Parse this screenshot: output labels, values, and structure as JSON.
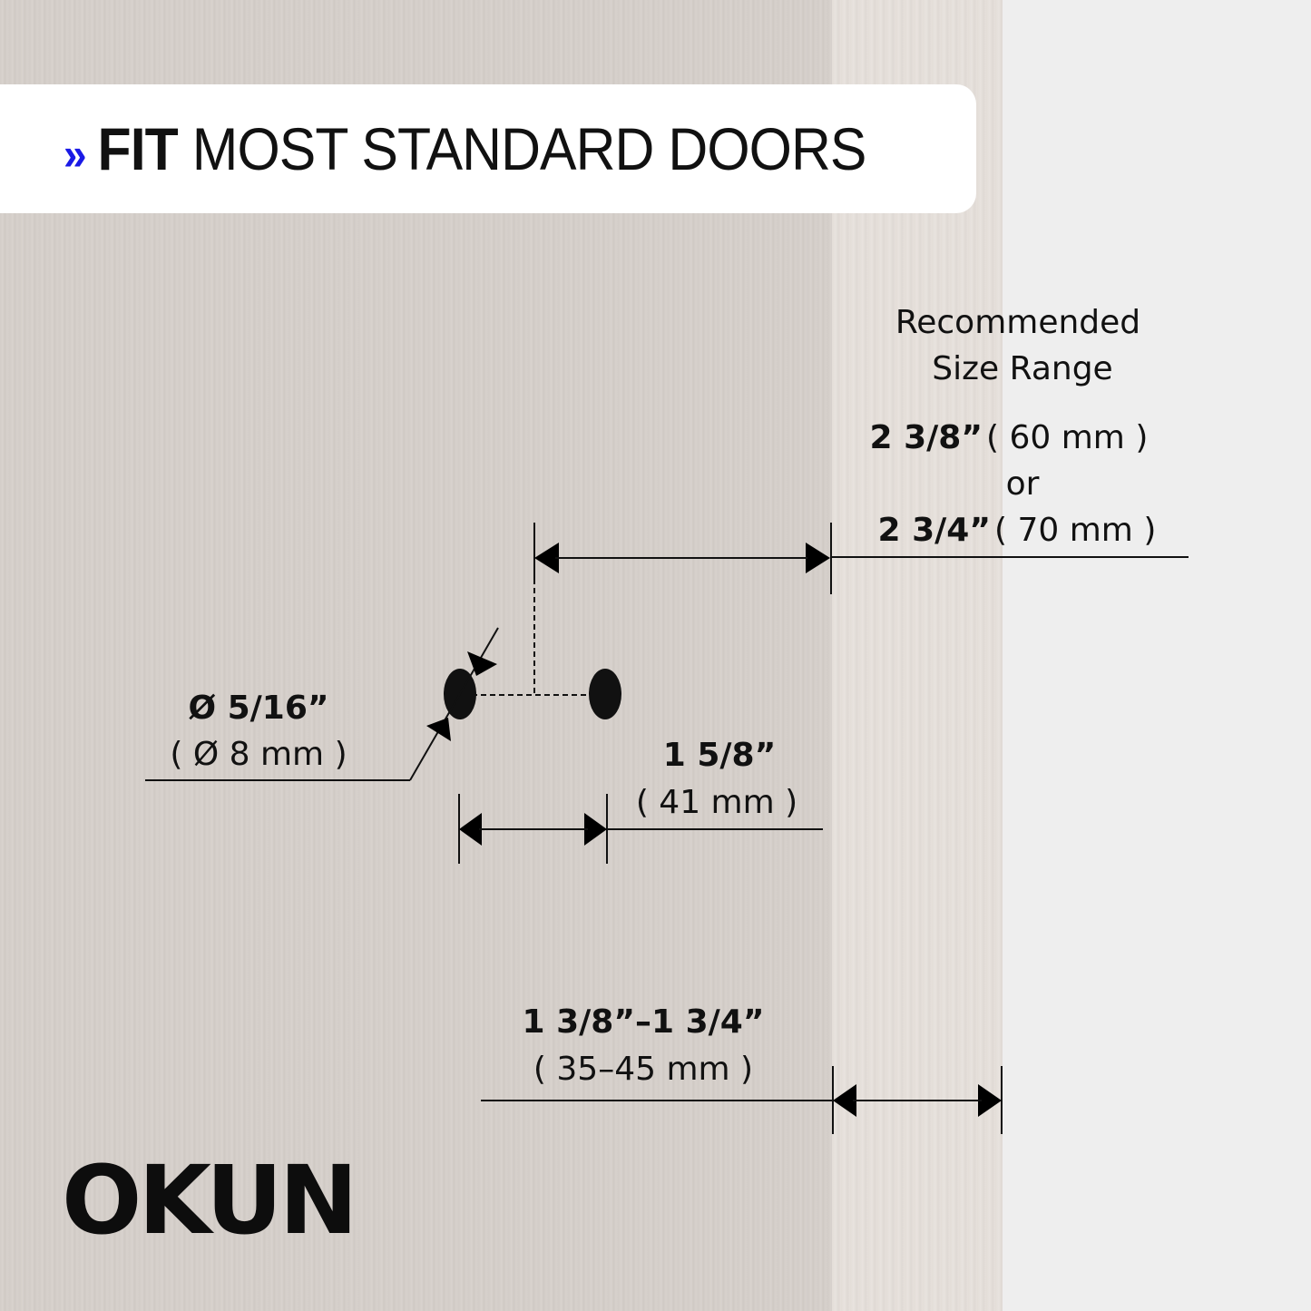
{
  "banner": {
    "chevron": "»",
    "bold": "FIT",
    "rest": " MOST STANDARD DOORS",
    "chevron_color": "#1a1ae6"
  },
  "backset": {
    "heading_line1": "Recommended",
    "heading_line2": "Size Range",
    "opt1_imperial": "2 3/8”",
    "opt1_metric": "( 60 mm )",
    "or": "or",
    "opt2_imperial": "2 3/4”",
    "opt2_metric": "( 70 mm )"
  },
  "hole_diameter": {
    "imperial": "Ø 5/16”",
    "metric": "( Ø 8 mm )"
  },
  "hole_spacing": {
    "imperial": "1 5/8”",
    "metric": "( 41 mm )"
  },
  "door_thickness": {
    "imperial": "1 3/8”–1 3/4”",
    "metric": "( 35–45 mm )"
  },
  "logo": {
    "text": "OKUN"
  }
}
